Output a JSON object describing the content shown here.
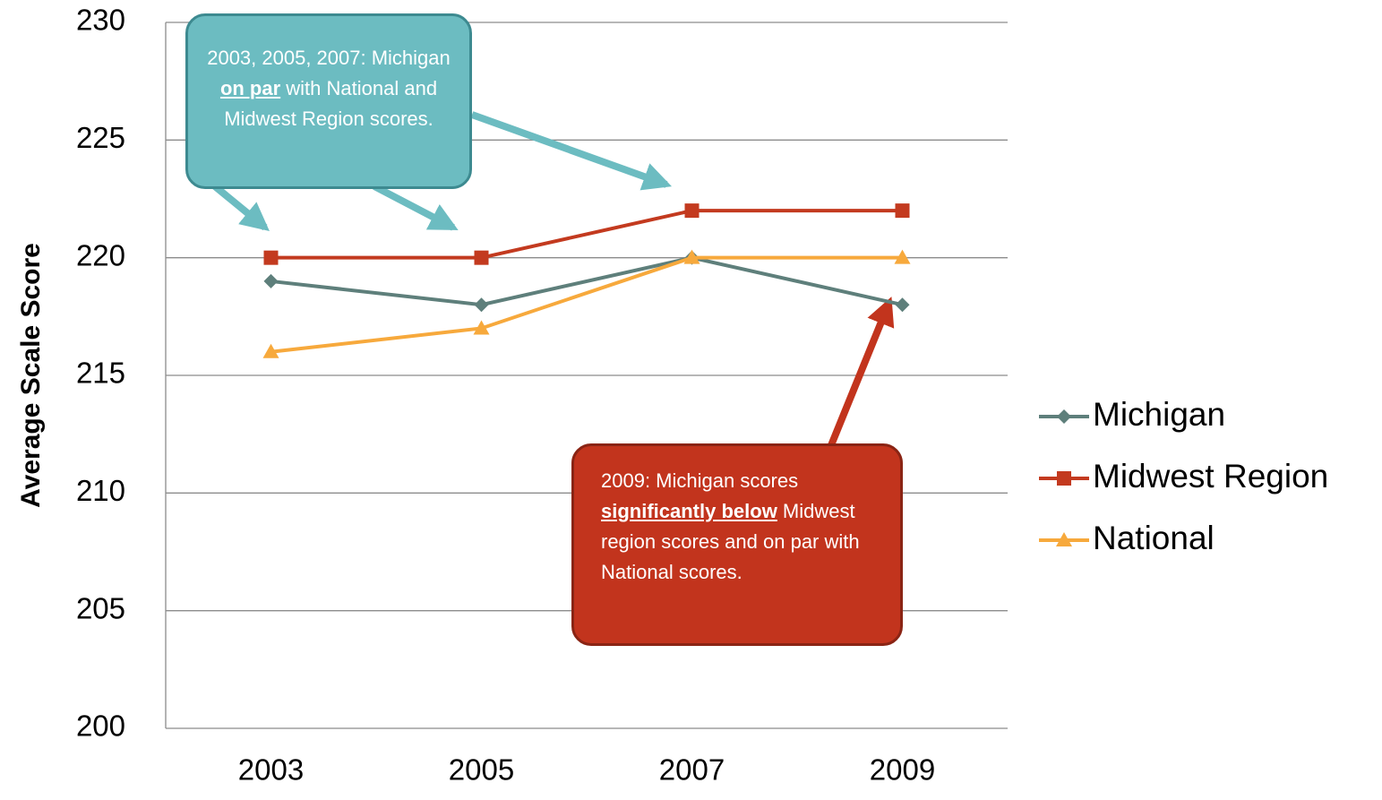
{
  "chart_data": {
    "type": "line",
    "y_label": "Average Scale Score",
    "categories": [
      "2003",
      "2005",
      "2007",
      "2009"
    ],
    "series": [
      {
        "name": "Michigan",
        "color": "#5e7f7b",
        "marker": "diamond",
        "values": [
          219,
          218,
          220,
          218
        ]
      },
      {
        "name": "Midwest Region",
        "color": "#c33a1f",
        "marker": "square",
        "values": [
          220,
          220,
          222,
          222
        ]
      },
      {
        "name": "National",
        "color": "#f7a93c",
        "marker": "triangle",
        "values": [
          216,
          217,
          220,
          220
        ]
      }
    ],
    "ylim": [
      200,
      230
    ],
    "yticks": [
      200,
      205,
      210,
      215,
      220,
      225,
      230
    ],
    "grid": true,
    "legend": "right",
    "annotations": [
      {
        "before": "2003, 2005, 2007: Michigan ",
        "emphasis": "on par",
        "after": " with National and Midwest Region scores."
      },
      {
        "before": "2009:  Michigan scores ",
        "emphasis": "significantly below",
        "after": " Midwest region scores and on par with National scores."
      }
    ]
  }
}
